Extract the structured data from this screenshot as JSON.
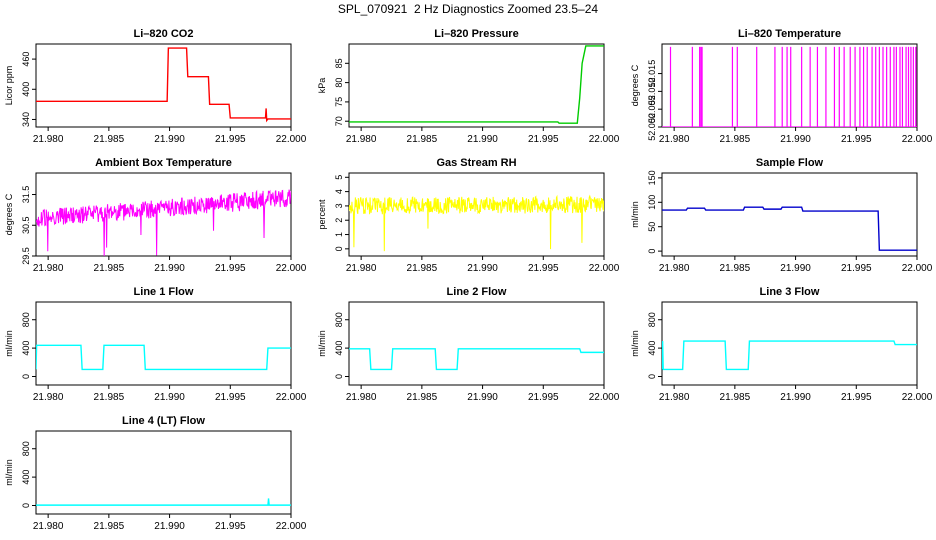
{
  "figure_title": "SPL_070921  2 Hz Diagnostics Zoomed 23.5–24",
  "chart_data": [
    {
      "type": "line",
      "title": "Li–820 CO2",
      "xlabel": "",
      "ylabel": "Licor ppm",
      "color": "#ff0000",
      "xlim": [
        21.979,
        22.0
      ],
      "ylim": [
        325,
        490
      ],
      "xticks": [
        21.98,
        21.985,
        21.99,
        21.995,
        22.0
      ],
      "xtick_labels": [
        "21.980",
        "21.985",
        "21.990",
        "21.995",
        "22.000"
      ],
      "yticks": [
        340,
        400,
        460
      ],
      "ytick_labels": [
        "340",
        "400",
        "460"
      ],
      "series": [
        {
          "name": "CO2",
          "x": [
            21.979,
            21.9898,
            21.9899,
            21.9914,
            21.9915,
            21.9932,
            21.9933,
            21.9949,
            21.995,
            21.9979,
            21.99795,
            21.998,
            21.9981,
            22.0
          ],
          "y": [
            376,
            376,
            482,
            482,
            425,
            425,
            370,
            370,
            343,
            343,
            362,
            338,
            341,
            341
          ]
        }
      ]
    },
    {
      "type": "line",
      "title": "Li–820 Pressure",
      "xlabel": "",
      "ylabel": "kPa",
      "color": "#00cc00",
      "xlim": [
        21.979,
        22.0
      ],
      "ylim": [
        68.5,
        90
      ],
      "xticks": [
        21.98,
        21.985,
        21.99,
        21.995,
        22.0
      ],
      "xtick_labels": [
        "21.980",
        "21.985",
        "21.990",
        "21.995",
        "22.000"
      ],
      "yticks": [
        70,
        75,
        80,
        85
      ],
      "ytick_labels": [
        "70",
        "75",
        "80",
        "85"
      ],
      "series": [
        {
          "name": "Pressure",
          "x": [
            21.979,
            21.9962,
            21.9963,
            21.9978,
            21.998,
            21.9982,
            21.9985,
            22.0
          ],
          "y": [
            69.8,
            69.8,
            69.5,
            69.5,
            76,
            85,
            89.5,
            89.5
          ]
        }
      ]
    },
    {
      "type": "line",
      "title": "Li–820 Temperature",
      "xlabel": "",
      "ylabel": "degrees C",
      "color": "#ff00ff",
      "xlim": [
        21.979,
        22.0
      ],
      "ylim": [
        52.0,
        52.0233
      ],
      "xticks": [
        21.98,
        21.985,
        21.99,
        21.995,
        22.0
      ],
      "xtick_labels": [
        "21.980",
        "21.985",
        "21.990",
        "21.995",
        "22.000"
      ],
      "yticks": [
        52.0,
        52.005,
        52.01,
        52.015
      ],
      "ytick_labels": [
        "52.000",
        "52.005",
        "52.010",
        "52.015"
      ],
      "series": [
        {
          "name": "Temperature",
          "base": 52.0,
          "level": 52.0225,
          "x_spikes": [
            21.9797,
            21.9815,
            21.9821,
            21.9822,
            21.9823,
            21.9848,
            21.9852,
            21.9868,
            21.9883,
            21.9889,
            21.9893,
            21.9896,
            21.9905,
            21.9912,
            21.9918,
            21.9925,
            21.9932,
            21.9936,
            21.994,
            21.9945,
            21.9949,
            21.9953,
            21.9956,
            21.9959,
            21.9963,
            21.9966,
            21.9969,
            21.9972,
            21.9975,
            21.9978,
            21.9981,
            21.9983,
            21.9986,
            21.9988,
            21.9991,
            21.9993,
            21.9995,
            21.9997,
            21.9999
          ]
        }
      ]
    },
    {
      "type": "line",
      "title": "Ambient Box Temperature",
      "xlabel": "",
      "ylabel": "degrees C",
      "color": "#ff00ff",
      "xlim": [
        21.979,
        22.0
      ],
      "ylim": [
        29.5,
        32.2
      ],
      "xticks": [
        21.98,
        21.985,
        21.99,
        21.995,
        22.0
      ],
      "xtick_labels": [
        "21.980",
        "21.985",
        "21.990",
        "21.995",
        "22.000"
      ],
      "yticks": [
        29.5,
        30.5,
        31.5
      ],
      "ytick_labels": [
        "29.5",
        "30.5",
        "31.5"
      ],
      "series": [
        {
          "name": "Ambient",
          "x": [
            21.979,
            22.0
          ],
          "y_start": 30.7,
          "y_end": 31.4,
          "noise": 0.3
        }
      ]
    },
    {
      "type": "line",
      "title": "Gas Stream RH",
      "xlabel": "",
      "ylabel": "percent",
      "color": "#ffff00",
      "xlim": [
        21.979,
        22.0
      ],
      "ylim": [
        -0.5,
        5.3
      ],
      "xticks": [
        21.98,
        21.985,
        21.99,
        21.995,
        22.0
      ],
      "xtick_labels": [
        "21.980",
        "21.985",
        "21.990",
        "21.995",
        "22.000"
      ],
      "yticks": [
        0,
        1,
        2,
        3,
        4,
        5
      ],
      "ytick_labels": [
        "0",
        "1",
        "2",
        "3",
        "4",
        "5"
      ],
      "series": [
        {
          "name": "RH",
          "x": [
            21.979,
            22.0
          ],
          "y_start": 3.0,
          "y_end": 3.1,
          "noise": 0.6
        }
      ]
    },
    {
      "type": "line",
      "title": "Sample Flow",
      "xlabel": "",
      "ylabel": "ml/min",
      "color": "#0000cc",
      "xlim": [
        21.979,
        22.0
      ],
      "ylim": [
        -10,
        160
      ],
      "xticks": [
        21.98,
        21.985,
        21.99,
        21.995,
        22.0
      ],
      "xtick_labels": [
        "21.980",
        "21.985",
        "21.990",
        "21.995",
        "22.000"
      ],
      "yticks": [
        0,
        50,
        100,
        150
      ],
      "ytick_labels": [
        "0",
        "50",
        "100",
        "150"
      ],
      "series": [
        {
          "name": "Sample",
          "x": [
            21.979,
            21.981,
            21.9811,
            21.9825,
            21.9826,
            21.9857,
            21.9858,
            21.9873,
            21.9874,
            21.9888,
            21.9889,
            21.9905,
            21.9906,
            21.9968,
            21.9969,
            22.0
          ],
          "y": [
            84,
            84,
            88,
            88,
            84,
            84,
            90,
            90,
            86,
            86,
            90,
            90,
            82,
            82,
            2,
            2
          ]
        }
      ]
    },
    {
      "type": "line",
      "title": "Line 1 Flow",
      "xlabel": "",
      "ylabel": "ml/min",
      "color": "#00ffff",
      "xlim": [
        21.979,
        22.0
      ],
      "ylim": [
        -120,
        1050
      ],
      "xticks": [
        21.98,
        21.985,
        21.99,
        21.995,
        22.0
      ],
      "xtick_labels": [
        "21.980",
        "21.985",
        "21.990",
        "21.995",
        "22.000"
      ],
      "yticks": [
        0,
        400,
        800
      ],
      "ytick_labels": [
        "0",
        "400",
        "800"
      ],
      "series": [
        {
          "name": "Line1",
          "x": [
            21.979,
            21.97905,
            21.9827,
            21.9828,
            21.9845,
            21.9846,
            21.9879,
            21.988,
            21.998,
            21.9981,
            22.0
          ],
          "y": [
            100,
            440,
            440,
            100,
            100,
            440,
            440,
            100,
            100,
            400,
            400
          ]
        }
      ]
    },
    {
      "type": "line",
      "title": "Line 2 Flow",
      "xlabel": "",
      "ylabel": "ml/min",
      "color": "#00ffff",
      "xlim": [
        21.979,
        22.0
      ],
      "ylim": [
        -120,
        1050
      ],
      "xticks": [
        21.98,
        21.985,
        21.99,
        21.995,
        22.0
      ],
      "xtick_labels": [
        "21.980",
        "21.985",
        "21.990",
        "21.995",
        "22.000"
      ],
      "yticks": [
        0,
        400,
        800
      ],
      "ytick_labels": [
        "0",
        "400",
        "800"
      ],
      "series": [
        {
          "name": "Line2",
          "x": [
            21.979,
            21.9807,
            21.9808,
            21.9825,
            21.9826,
            21.9861,
            21.9862,
            21.9879,
            21.988,
            21.998,
            21.9981,
            22.0
          ],
          "y": [
            390,
            390,
            100,
            100,
            390,
            390,
            100,
            100,
            390,
            390,
            340,
            340
          ]
        }
      ]
    },
    {
      "type": "line",
      "title": "Line 3 Flow",
      "xlabel": "",
      "ylabel": "ml/min",
      "color": "#00ffff",
      "xlim": [
        21.979,
        22.0
      ],
      "ylim": [
        -120,
        1050
      ],
      "xticks": [
        21.98,
        21.985,
        21.99,
        21.995,
        22.0
      ],
      "xtick_labels": [
        "21.980",
        "21.985",
        "21.990",
        "21.995",
        "22.000"
      ],
      "yticks": [
        0,
        400,
        800
      ],
      "ytick_labels": [
        "0",
        "400",
        "800"
      ],
      "series": [
        {
          "name": "Line3",
          "x": [
            21.979,
            21.97905,
            21.9791,
            21.9807,
            21.9808,
            21.9842,
            21.9843,
            21.9861,
            21.9862,
            21.9981,
            21.9982,
            22.0
          ],
          "y": [
            100,
            500,
            100,
            100,
            500,
            500,
            100,
            100,
            500,
            500,
            450,
            450
          ]
        }
      ]
    },
    {
      "type": "line",
      "title": "Line 4 (LT) Flow",
      "xlabel": "",
      "ylabel": "ml/min",
      "color": "#00ffff",
      "xlim": [
        21.979,
        22.0
      ],
      "ylim": [
        -120,
        1050
      ],
      "xticks": [
        21.98,
        21.985,
        21.99,
        21.995,
        22.0
      ],
      "xtick_labels": [
        "21.980",
        "21.985",
        "21.990",
        "21.995",
        "22.000"
      ],
      "yticks": [
        0,
        400,
        800
      ],
      "ytick_labels": [
        "0",
        "400",
        "800"
      ],
      "series": [
        {
          "name": "Line4",
          "x": [
            21.979,
            21.9981,
            21.99815,
            21.9982,
            22.0
          ],
          "y": [
            5,
            5,
            100,
            5,
            5
          ]
        }
      ]
    }
  ]
}
